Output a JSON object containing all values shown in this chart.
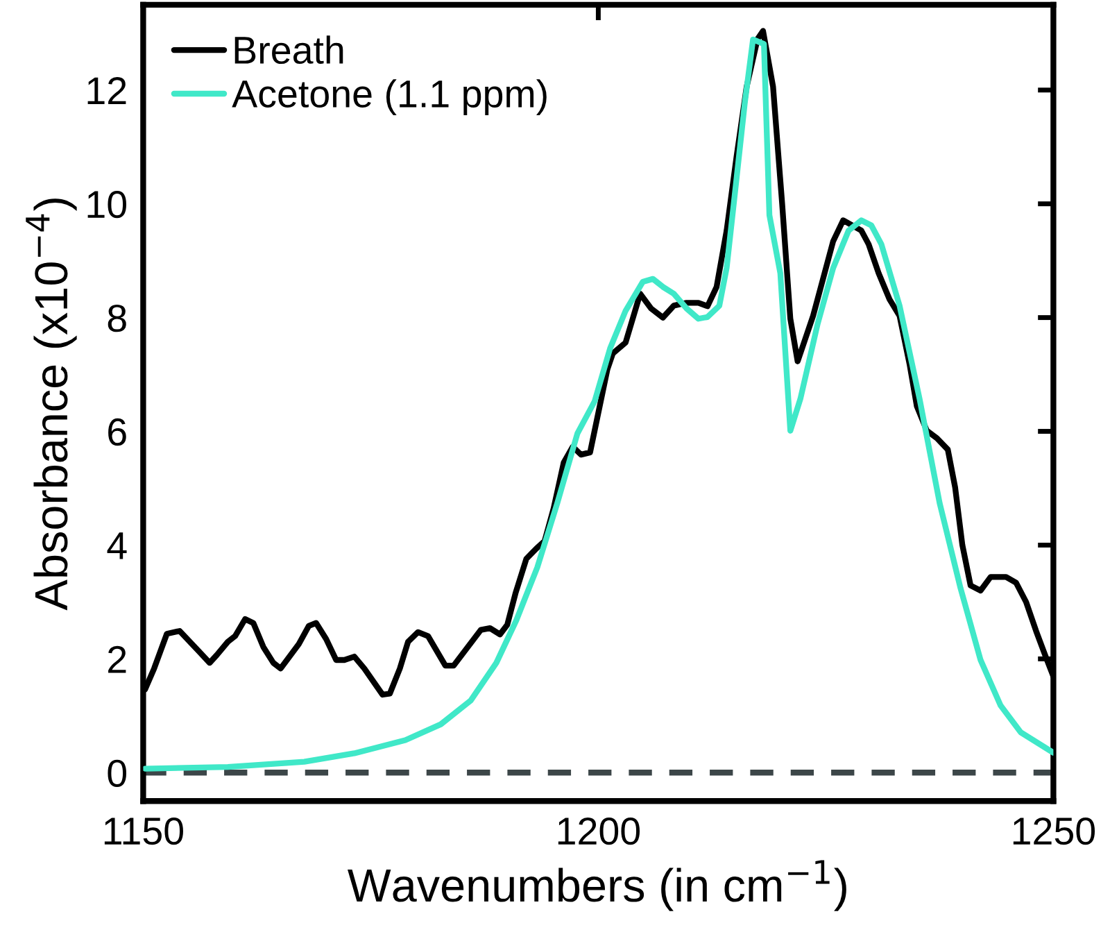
{
  "chart_data": {
    "type": "line",
    "xlabel": "Wavenumbers (in cm$^{−1}$)",
    "ylabel": "Absorbance (x10$^{−4}$)",
    "xlim": [
      1150,
      1250
    ],
    "ylim": [
      -0.5,
      13.5
    ],
    "xticks": [
      1150,
      1200,
      1250
    ],
    "yticks": [
      0,
      2,
      4,
      6,
      8,
      10,
      12
    ],
    "grid": false,
    "legend": "top left",
    "line_style": "solid",
    "marker": "none",
    "ref_lines": [
      {
        "axis": "y",
        "value": 0,
        "label": null,
        "color": "#3c4648",
        "line_style": "dashed"
      }
    ],
    "series": [
      {
        "name": "Breath",
        "color": "#000000",
        "x": [
          1150.2,
          1151.2,
          1152.6,
          1154.0,
          1156.2,
          1157.3,
          1158.1,
          1159.3,
          1160.1,
          1161.2,
          1162.1,
          1163.2,
          1164.3,
          1165.1,
          1167.1,
          1168.2,
          1169.0,
          1170.1,
          1171.2,
          1172.1,
          1173.2,
          1174.3,
          1176.3,
          1177.1,
          1178.2,
          1179.1,
          1180.2,
          1181.3,
          1183.2,
          1184.1,
          1187.1,
          1188.1,
          1189.2,
          1190.0,
          1190.9,
          1192.1,
          1193.2,
          1194.1,
          1195.1,
          1196.2,
          1197.2,
          1198.1,
          1199.1,
          1201.0,
          1201.6,
          1203.0,
          1204.6,
          1205.8,
          1207.1,
          1208.3,
          1209.7,
          1211.0,
          1212.0,
          1213.0,
          1214.1,
          1215.2,
          1216.3,
          1217.5,
          1218.1,
          1219.2,
          1220.2,
          1221.1,
          1221.9,
          1223.6,
          1225.8,
          1226.9,
          1228.9,
          1229.7,
          1230.8,
          1232.0,
          1233.1,
          1234.2,
          1235.0,
          1236.1,
          1237.2,
          1238.4,
          1239.2,
          1240.0,
          1240.9,
          1242.0,
          1243.1,
          1244.8,
          1245.9,
          1247.0,
          1248.1,
          1249.2,
          1250.0
        ],
        "values": [
          1.46,
          1.83,
          2.44,
          2.49,
          2.12,
          1.93,
          2.07,
          2.3,
          2.4,
          2.7,
          2.63,
          2.21,
          1.93,
          1.83,
          2.26,
          2.58,
          2.63,
          2.35,
          1.98,
          1.98,
          2.04,
          1.83,
          1.37,
          1.39,
          1.83,
          2.3,
          2.47,
          2.4,
          1.88,
          1.88,
          2.51,
          2.54,
          2.43,
          2.6,
          3.15,
          3.76,
          3.94,
          4.07,
          4.65,
          5.45,
          5.73,
          5.59,
          5.63,
          7.09,
          7.37,
          7.56,
          8.42,
          8.16,
          8.0,
          8.21,
          8.26,
          8.26,
          8.2,
          8.54,
          9.53,
          10.84,
          12.06,
          12.9,
          13.04,
          12.06,
          10.0,
          7.98,
          7.23,
          8.03,
          9.34,
          9.71,
          9.53,
          9.29,
          8.78,
          8.32,
          8.03,
          7.18,
          6.44,
          6.01,
          5.88,
          5.68,
          5.02,
          4.0,
          3.29,
          3.2,
          3.44,
          3.44,
          3.34,
          3.0,
          2.49,
          2.02,
          1.69
        ]
      },
      {
        "name": "Acetone (1.1 ppm)",
        "color": "#40e8c8",
        "x": [
          1150.2,
          1159.3,
          1167.7,
          1173.2,
          1178.8,
          1182.7,
          1186.0,
          1188.8,
          1191.0,
          1193.3,
          1195.5,
          1197.7,
          1199.6,
          1201.3,
          1203.0,
          1204.9,
          1206.0,
          1207.1,
          1208.3,
          1209.7,
          1211.0,
          1212.0,
          1213.3,
          1214.1,
          1215.2,
          1216.1,
          1217.0,
          1218.2,
          1218.8,
          1220.0,
          1221.1,
          1222.2,
          1224.1,
          1225.8,
          1227.5,
          1228.9,
          1230.0,
          1231.1,
          1233.1,
          1235.3,
          1237.5,
          1239.8,
          1242.0,
          1244.2,
          1246.4,
          1250.0
        ],
        "values": [
          0.07,
          0.1,
          0.19,
          0.34,
          0.57,
          0.85,
          1.27,
          1.93,
          2.68,
          3.61,
          4.74,
          5.96,
          6.53,
          7.46,
          8.12,
          8.63,
          8.68,
          8.54,
          8.42,
          8.16,
          7.98,
          8.01,
          8.21,
          8.87,
          10.46,
          11.78,
          12.89,
          12.81,
          9.8,
          8.78,
          6.01,
          6.57,
          7.89,
          8.87,
          9.53,
          9.71,
          9.62,
          9.29,
          8.21,
          6.57,
          4.74,
          3.24,
          1.98,
          1.18,
          0.71,
          0.35
        ]
      }
    ]
  }
}
